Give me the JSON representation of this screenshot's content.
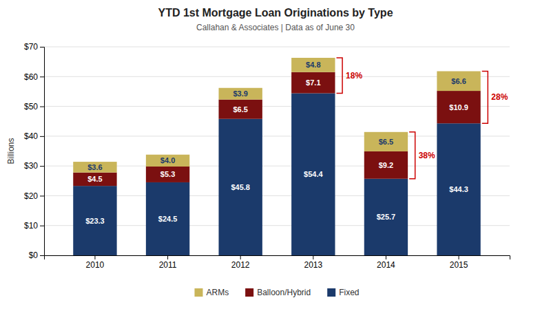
{
  "chart_data": {
    "type": "bar",
    "stacked": true,
    "title": "YTD 1st Mortgage Loan Originations by Type",
    "subtitle": "Callahan & Associates  |  Data as of June 30",
    "y_label": "Billions",
    "categories": [
      "2010",
      "2011",
      "2012",
      "2013",
      "2014",
      "2015"
    ],
    "series": [
      {
        "name": "Fixed",
        "color": "#1B3A6B",
        "values": [
          23.3,
          24.5,
          45.8,
          54.4,
          25.7,
          44.3
        ],
        "value_labels": [
          "$23.3",
          "$24.5",
          "$45.8",
          "$54.4",
          "$25.7",
          "$44.3"
        ]
      },
      {
        "name": "Balloon/Hybrid",
        "color": "#7B1010",
        "values": [
          4.5,
          5.3,
          6.5,
          7.1,
          9.2,
          10.9
        ],
        "value_labels": [
          "$4.5",
          "$5.3",
          "$6.5",
          "$7.1",
          "$9.2",
          "$10.9"
        ]
      },
      {
        "name": "ARMs",
        "color": "#C9B55A",
        "values": [
          3.6,
          4.0,
          3.9,
          4.8,
          6.5,
          6.6
        ],
        "value_labels": [
          "$3.6",
          "$4.0",
          "$3.9",
          "$4.8",
          "$6.5",
          "$6.6"
        ]
      }
    ],
    "data_labels": true,
    "ylim": [
      0,
      70
    ],
    "yticks": [
      {
        "value": 0,
        "label": "$0"
      },
      {
        "value": 10,
        "label": "$10"
      },
      {
        "value": 20,
        "label": "$20"
      },
      {
        "value": 30,
        "label": "$30"
      },
      {
        "value": 40,
        "label": "$40"
      },
      {
        "value": 50,
        "label": "$50"
      },
      {
        "value": 60,
        "label": "$60"
      },
      {
        "value": 70,
        "label": "$70"
      }
    ],
    "grid": true,
    "legend": "bottom",
    "annotations": [
      {
        "category": "2013",
        "text": "18%",
        "color": "#CC0000"
      },
      {
        "category": "2014",
        "text": "38%",
        "color": "#CC0000"
      },
      {
        "category": "2015",
        "text": "28%",
        "color": "#CC0000"
      }
    ]
  }
}
